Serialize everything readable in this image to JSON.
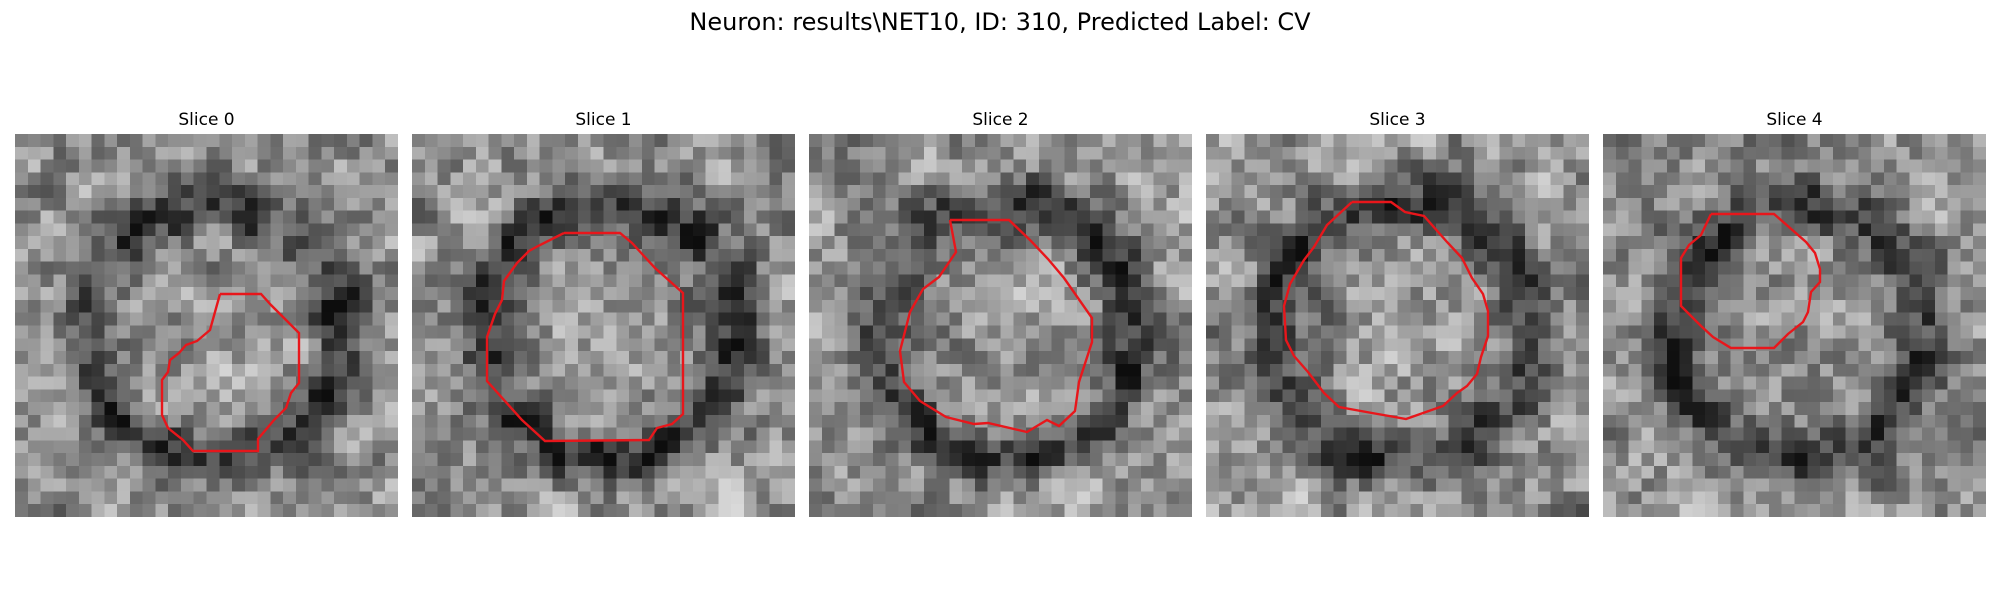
{
  "figure": {
    "title": "Neuron: results\\NET10, ID: 310, Predicted Label: CV"
  },
  "panels": [
    {
      "title": "Slice 0",
      "contour_color": "#e8161b"
    },
    {
      "title": "Slice 1",
      "contour_color": "#e8161b"
    },
    {
      "title": "Slice 2",
      "contour_color": "#e8161b"
    },
    {
      "title": "Slice 3",
      "contour_color": "#e8161b"
    },
    {
      "title": "Slice 4",
      "contour_color": "#e8161b"
    }
  ],
  "colormap": "gray"
}
